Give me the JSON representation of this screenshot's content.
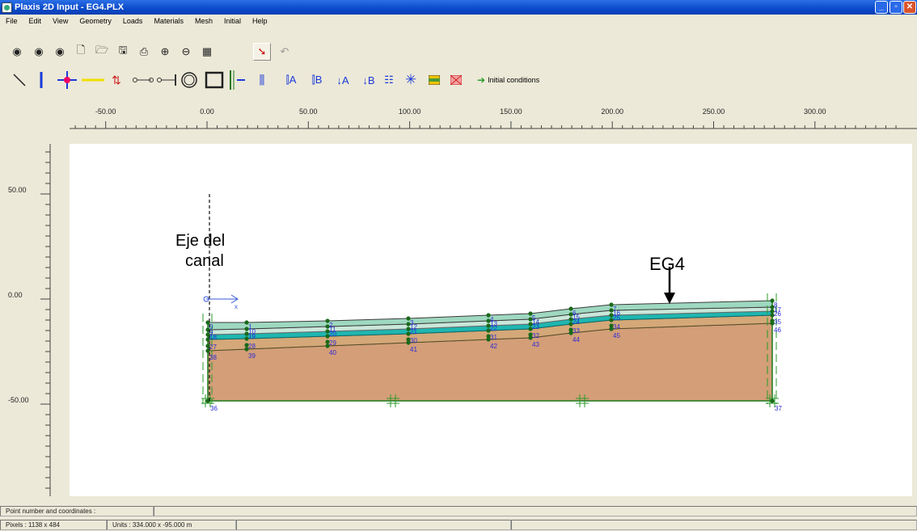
{
  "window": {
    "title": "Plaxis 2D Input - EG4.PLX"
  },
  "menu": [
    "File",
    "Edit",
    "View",
    "Geometry",
    "Loads",
    "Materials",
    "Mesh",
    "Initial",
    "Help"
  ],
  "toolbar2": {
    "initial_conditions": "Initial conditions"
  },
  "ruler": {
    "h_labels": [
      "-50.00",
      "0.00",
      "50.00",
      "100.00",
      "150.00",
      "200.00",
      "250.00",
      "300.00"
    ],
    "v_labels": [
      "50.00",
      "0.00",
      "-50.00"
    ]
  },
  "annotations": {
    "axis_label_line1": "Eje  del",
    "axis_label_line2": "canal",
    "section_label": "EG4",
    "x_axis": "x"
  },
  "point_labels": [
    "0",
    "1",
    "2",
    "3",
    "4",
    "5",
    "6",
    "7",
    "8",
    "9",
    "10",
    "11",
    "12",
    "13",
    "14",
    "15",
    "16",
    "17",
    "18",
    "19",
    "20",
    "21",
    "22",
    "23",
    "24",
    "25",
    "26",
    "27",
    "28",
    "29",
    "30",
    "31",
    "32",
    "33",
    "34",
    "35",
    "36",
    "37",
    "38",
    "39",
    "40",
    "41",
    "42",
    "43",
    "44",
    "45",
    "46"
  ],
  "status": {
    "point_info": "Point number and coordinates :",
    "pixels": "Pixels : 1138 x 484",
    "units": "Units   : 334.000 x -95.000 m"
  },
  "colors": {
    "layer_top": "#9ed8c0",
    "layer_mid": "#c9e7da",
    "layer_cyan": "#1fb6b0",
    "layer_tan": "#d4a878",
    "layer_base": "#d39e78",
    "geom_line": "#1a7a1a",
    "label": "#2a2ad8"
  }
}
